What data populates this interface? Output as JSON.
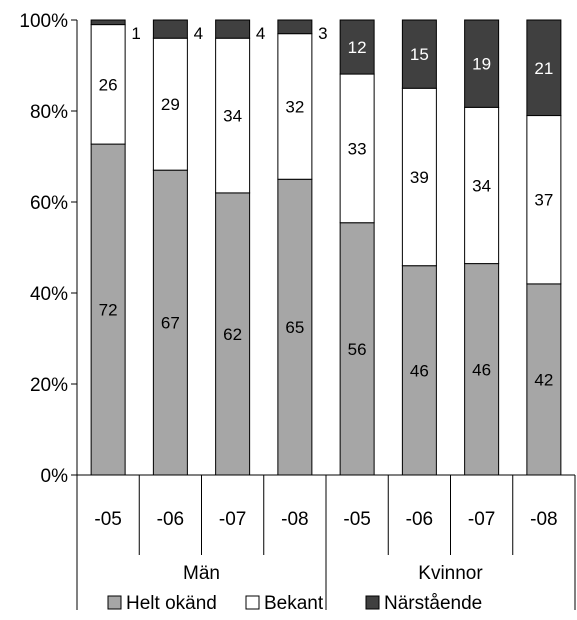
{
  "chart_data": {
    "type": "bar",
    "stacked": true,
    "percent_stacked": true,
    "categories": [
      "-05",
      "-06",
      "-07",
      "-08",
      "-05",
      "-06",
      "-07",
      "-08"
    ],
    "groups": [
      {
        "label": "Män",
        "start": 0,
        "end": 3
      },
      {
        "label": "Kvinnor",
        "start": 4,
        "end": 7
      }
    ],
    "series": [
      {
        "name": "Helt okänd",
        "color": "#a6a6a6",
        "values": [
          72,
          67,
          62,
          65,
          56,
          46,
          46,
          42
        ],
        "label_color": "#000000"
      },
      {
        "name": "Bekant",
        "color": "#ffffff",
        "values": [
          26,
          29,
          34,
          32,
          33,
          39,
          34,
          37
        ],
        "label_color": "#000000"
      },
      {
        "name": "Närstående",
        "color": "#404040",
        "values": [
          1,
          4,
          4,
          3,
          12,
          15,
          19,
          21
        ],
        "label_color": "#ffffff"
      }
    ],
    "y_ticks": [
      "0%",
      "20%",
      "40%",
      "60%",
      "80%",
      "100%"
    ],
    "ylim": [
      0,
      100
    ],
    "grid": false,
    "legend_position": "bottom"
  }
}
